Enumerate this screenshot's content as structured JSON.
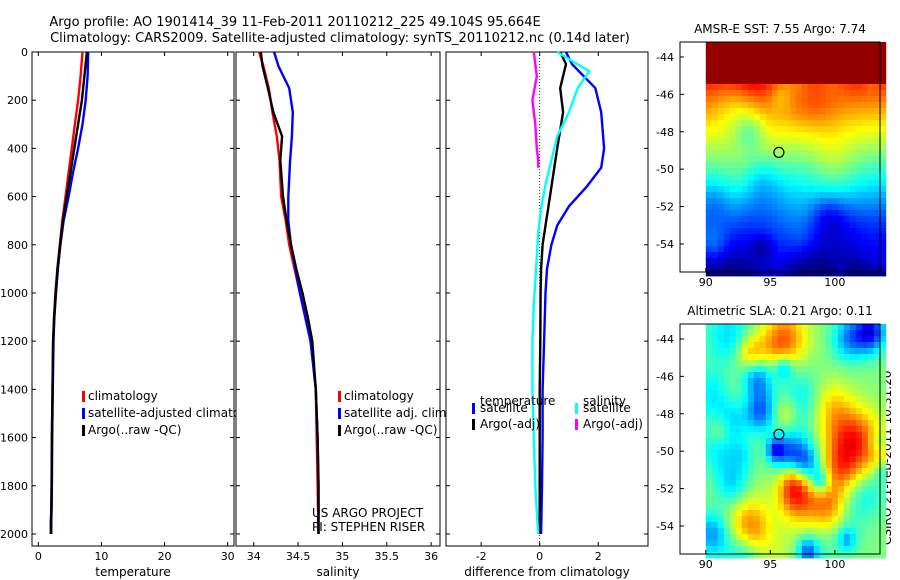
{
  "page": {
    "title_line1": "Argo profile: AO 1901414_39 11-Feb-2011 20110212_225 49.104S 95.664E",
    "title_line2": "Climatology: CARS2009. Satellite-adjusted climatology: synTS_20110212.nc (0.14d later)",
    "credit": "CSIRO 21-Feb-2011 10:31:20"
  },
  "chart_data": [
    {
      "type": "line",
      "id": "temperature-profile",
      "xlabel": "temperature",
      "xlim": [
        -1,
        31
      ],
      "xticks": [
        "0",
        "10",
        "20",
        "30"
      ],
      "xtick_values": [
        0,
        10,
        20,
        30
      ],
      "ylim": [
        2050,
        0
      ],
      "yticks": [
        "0",
        "200",
        "400",
        "600",
        "800",
        "1000",
        "1200",
        "1400",
        "1600",
        "1800",
        "2000"
      ],
      "ytick_values": [
        0,
        200,
        400,
        600,
        800,
        1000,
        1200,
        1400,
        1600,
        1800,
        2000
      ],
      "legend": [
        "climatology",
        "satellite-adjusted climatolo",
        "Argo(..raw -QC)"
      ],
      "series": [
        {
          "name": "climatology",
          "color": "#ff0000",
          "x": [
            7.0,
            6.7,
            6.3,
            5.8,
            5.3,
            4.8,
            4.3,
            3.8,
            3.4,
            3.0,
            2.7,
            2.5,
            2.35,
            2.25,
            2.15,
            2.1,
            2.05,
            2.0,
            2.0
          ],
          "y": [
            0,
            100,
            200,
            300,
            400,
            500,
            600,
            700,
            800,
            900,
            1000,
            1100,
            1200,
            1400,
            1600,
            1800,
            1900,
            1950,
            2000
          ]
        },
        {
          "name": "satellite-adjusted climatolo",
          "color": "#0000ff",
          "x": [
            7.9,
            7.8,
            7.5,
            7.0,
            6.3,
            5.5,
            4.8,
            4.0,
            3.5,
            3.1,
            2.8,
            2.55,
            2.4,
            2.3,
            2.2,
            2.15,
            2.1,
            2.05,
            2.05
          ],
          "y": [
            0,
            100,
            200,
            300,
            400,
            500,
            600,
            700,
            800,
            900,
            1000,
            1100,
            1200,
            1400,
            1600,
            1800,
            1900,
            1950,
            2000
          ]
        },
        {
          "name": "Argo(..raw -QC)",
          "color": "#000000",
          "x": [
            7.7,
            7.3,
            6.9,
            6.3,
            5.7,
            5.1,
            4.5,
            3.9,
            3.45,
            3.05,
            2.75,
            2.5,
            2.35,
            2.25,
            2.15,
            2.1,
            2.05,
            2.0,
            2.0
          ],
          "y": [
            0,
            100,
            200,
            300,
            400,
            500,
            600,
            700,
            800,
            900,
            1000,
            1100,
            1200,
            1400,
            1600,
            1800,
            1900,
            1950,
            2000
          ]
        }
      ]
    },
    {
      "type": "line",
      "id": "salinity-profile",
      "xlabel": "salinity",
      "xlim": [
        33.8,
        36.1
      ],
      "xticks": [
        "34",
        "34.5",
        "35",
        "35.5",
        "36"
      ],
      "xtick_values": [
        34,
        34.5,
        35,
        35.5,
        36
      ],
      "ylim": [
        2050,
        0
      ],
      "legend": [
        "climatology",
        "satellite adj. clim.",
        "Argo(..raw -QC)"
      ],
      "series": [
        {
          "name": "climatology",
          "color": "#ff0000",
          "x": [
            34.06,
            34.11,
            34.17,
            34.21,
            34.26,
            34.29,
            34.31,
            34.36,
            34.4,
            34.46,
            34.52,
            34.59,
            34.65,
            34.7,
            34.71,
            34.72,
            34.73
          ],
          "y": [
            0,
            60,
            150,
            250,
            350,
            450,
            600,
            700,
            800,
            900,
            1000,
            1100,
            1200,
            1400,
            1600,
            1800,
            2000
          ]
        },
        {
          "name": "satellite adj. clim.",
          "color": "#0000ff",
          "x": [
            34.23,
            34.28,
            34.4,
            34.44,
            34.43,
            34.41,
            34.39,
            34.39,
            34.42,
            34.47,
            34.52,
            34.58,
            34.64,
            34.7,
            34.72,
            34.73,
            34.73
          ],
          "y": [
            0,
            60,
            150,
            250,
            350,
            450,
            600,
            700,
            800,
            900,
            1000,
            1100,
            1200,
            1400,
            1600,
            1800,
            2000
          ]
        },
        {
          "name": "Argo(..raw -QC)",
          "color": "#000000",
          "x": [
            34.08,
            34.1,
            34.16,
            34.22,
            34.32,
            34.3,
            34.33,
            34.37,
            34.42,
            34.48,
            34.55,
            34.61,
            34.66,
            34.7,
            34.72,
            34.73,
            34.73
          ],
          "y": [
            0,
            60,
            150,
            250,
            350,
            450,
            600,
            700,
            800,
            900,
            1000,
            1100,
            1200,
            1400,
            1600,
            1800,
            2000
          ]
        }
      ],
      "annotation": [
        "US ARGO PROJECT",
        "PI: STEPHEN RISER"
      ]
    },
    {
      "type": "line",
      "id": "difference-profile",
      "xlabel": "difference from climatology",
      "xlim": [
        -3.2,
        3.7
      ],
      "xticks": [
        "-2",
        "0",
        "2"
      ],
      "xtick_values": [
        -2,
        0,
        2
      ],
      "ylim": [
        2050,
        0
      ],
      "legend_groups": [
        {
          "title": "temperature",
          "items": [
            "satellite",
            "Argo(-adj)"
          ]
        },
        {
          "title": "salinity",
          "items": [
            "satellite",
            "Argo(-adj)"
          ]
        }
      ],
      "series": [
        {
          "name": "temperature satellite",
          "color": "#0000ff",
          "x": [
            0.9,
            1.1,
            1.9,
            2.1,
            2.2,
            2.1,
            1.6,
            1.0,
            0.6,
            0.4,
            0.25,
            0.2,
            0.15,
            0.1,
            0.1,
            0.08,
            0.05
          ],
          "y": [
            0,
            50,
            150,
            250,
            400,
            480,
            560,
            640,
            720,
            800,
            900,
            1000,
            1200,
            1400,
            1600,
            1800,
            2000
          ]
        },
        {
          "name": "temperature Argo(-adj)",
          "color": "#000000",
          "x": [
            0.7,
            0.9,
            0.7,
            0.8,
            0.6,
            0.5,
            0.4,
            0.3,
            0.2,
            0.1,
            0.05,
            0.03,
            0.02,
            0.0,
            0.0,
            0.0,
            0.0
          ],
          "y": [
            0,
            50,
            150,
            250,
            400,
            480,
            560,
            640,
            720,
            800,
            900,
            1000,
            1200,
            1400,
            1600,
            1800,
            2000
          ]
        },
        {
          "name": "salinity satellite",
          "color": "#00ffff",
          "x": [
            0.6,
            1.7,
            1.3,
            1.0,
            0.6,
            0.4,
            0.2,
            0.05,
            -0.05,
            -0.1,
            -0.15,
            -0.2,
            -0.25,
            -0.25,
            -0.2,
            -0.15,
            -0.05
          ],
          "y": [
            0,
            80,
            150,
            250,
            350,
            450,
            550,
            650,
            750,
            850,
            950,
            1050,
            1200,
            1400,
            1600,
            1800,
            2000
          ]
        },
        {
          "name": "salinity Argo(-adj)",
          "color": "#ff00ff",
          "x": [
            -0.2,
            -0.1,
            -0.25,
            -0.15,
            -0.1,
            -0.05,
            -0.05,
            -0.05
          ],
          "y": [
            0,
            100,
            200,
            300,
            400,
            450,
            470,
            480
          ]
        }
      ]
    },
    {
      "type": "heatmap",
      "id": "sst-map",
      "title": "AMSR-E SST: 7.55 Argo: 7.74",
      "xlim": [
        88,
        103.5
      ],
      "ylim": [
        -55.5,
        -43.2
      ],
      "xticks": [
        "90",
        "95",
        "100"
      ],
      "xtick_values": [
        90,
        95,
        100
      ],
      "yticks": [
        "-44",
        "-46",
        "-48",
        "-50",
        "-52",
        "-54"
      ],
      "ytick_values": [
        -44,
        -46,
        -48,
        -50,
        -52,
        -54
      ],
      "data_extent": {
        "lon": [
          90,
          103.5
        ],
        "lat": [
          -55.5,
          -43.2
        ]
      },
      "argo_position": {
        "lon": 95.664,
        "lat": -49.104
      }
    },
    {
      "type": "heatmap",
      "id": "sla-map",
      "title": "Altimetric SLA: 0.21 Argo: 0.11",
      "xlim": [
        88,
        103.5
      ],
      "ylim": [
        -55.5,
        -43.2
      ],
      "xticks": [
        "90",
        "95",
        "100"
      ],
      "xtick_values": [
        90,
        95,
        100
      ],
      "yticks": [
        "-44",
        "-46",
        "-48",
        "-50",
        "-52",
        "-54"
      ],
      "ytick_values": [
        -44,
        -46,
        -48,
        -50,
        -52,
        -54
      ],
      "data_extent": {
        "lon": [
          90,
          103.5
        ],
        "lat": [
          -55.5,
          -43.2
        ]
      },
      "argo_position": {
        "lon": 95.664,
        "lat": -49.104
      }
    }
  ]
}
